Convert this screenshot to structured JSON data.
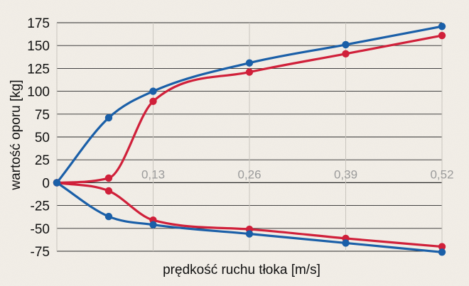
{
  "chart_data": {
    "type": "line",
    "xlabel": "prędkość ruchu tłoka [m/s]",
    "ylabel": "wartość oporu [kg]",
    "xlim": [
      0,
      0.52
    ],
    "ylim": [
      -75,
      175
    ],
    "x_ticks": [
      "0,13",
      "0,26",
      "0,39",
      "0,52"
    ],
    "y_ticks": [
      "175",
      "150",
      "125",
      "100",
      "75",
      "50",
      "25",
      "0",
      "-25",
      "-50",
      "-75"
    ],
    "grid": true,
    "series": [
      {
        "color": "#1a5fa8",
        "x": [
          0,
          0.07,
          0.13,
          0.26,
          0.39,
          0.52
        ],
        "y": [
          0,
          71,
          100,
          131,
          151,
          171
        ]
      },
      {
        "color": "#d0203a",
        "x": [
          0,
          0.07,
          0.13,
          0.26,
          0.39,
          0.52
        ],
        "y": [
          0,
          5,
          89,
          121,
          141,
          161
        ]
      },
      {
        "color": "#d0203a",
        "x": [
          0,
          0.07,
          0.13,
          0.26,
          0.39,
          0.52
        ],
        "y": [
          0,
          -9,
          -41,
          -51,
          -61,
          -70
        ]
      },
      {
        "color": "#1a5fa8",
        "x": [
          0,
          0.07,
          0.13,
          0.26,
          0.39,
          0.52
        ],
        "y": [
          0,
          -37,
          -46,
          -56,
          -66,
          -76
        ]
      }
    ]
  }
}
